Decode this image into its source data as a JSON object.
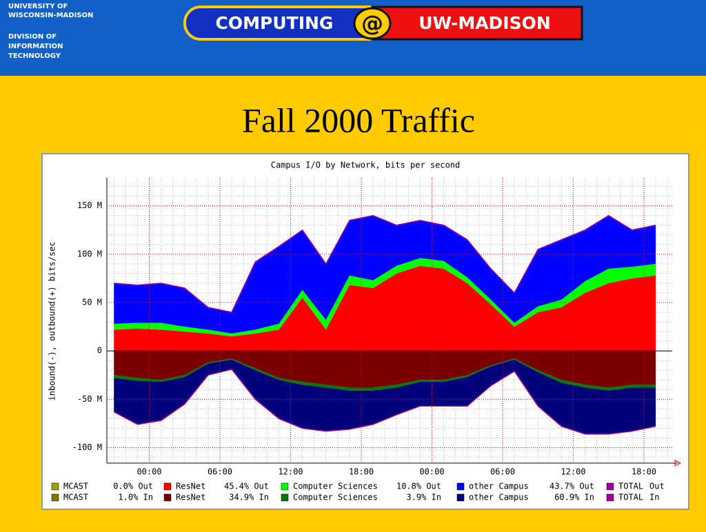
{
  "header": {
    "org": [
      "UNIVERSITY OF",
      "WISCONSIN-MADISON",
      "DIVISION OF",
      "INFORMATION",
      "TECHNOLOGY"
    ],
    "logo_left": "COMPUTING",
    "logo_at": "@",
    "logo_right": "UW-MADISON"
  },
  "slide": {
    "title": "Fall 2000 Traffic"
  },
  "chart_data": {
    "type": "stacked-area",
    "title": "Campus I/O by Network, bits per second",
    "ylabel": "inbound(-), outbound(+) bits/sec",
    "x": [
      -3,
      -1,
      1,
      3,
      5,
      7,
      9,
      11,
      13,
      15,
      17,
      19,
      21,
      23,
      25,
      27,
      29,
      31,
      33,
      35,
      37,
      39,
      41,
      43
    ],
    "xlim": [
      -3.6,
      44.4
    ],
    "xticks": [
      {
        "value": 0,
        "label": "00:00"
      },
      {
        "value": 6,
        "label": "06:00"
      },
      {
        "value": 12,
        "label": "12:00"
      },
      {
        "value": 18,
        "label": "18:00"
      },
      {
        "value": 24,
        "label": "00:00"
      },
      {
        "value": 30,
        "label": "06:00"
      },
      {
        "value": 36,
        "label": "12:00"
      },
      {
        "value": 42,
        "label": "18:00"
      }
    ],
    "minor_xticks": [
      -3,
      -2,
      -1,
      0,
      1,
      2,
      3,
      4,
      5,
      6,
      7,
      8,
      9,
      10,
      11,
      12,
      13,
      14,
      15,
      16,
      17,
      18,
      19,
      20,
      21,
      22,
      23,
      24,
      25,
      26,
      27,
      28,
      29,
      30,
      31,
      32,
      33,
      34,
      35,
      36,
      37,
      38,
      39,
      40,
      41,
      42,
      43,
      44
    ],
    "ylim": [
      -116,
      179
    ],
    "yticks": [
      {
        "value": -100,
        "label": "-100 M"
      },
      {
        "value": -50,
        "label": "-50 M"
      },
      0,
      {
        "value": 50,
        "label": "50 M"
      },
      {
        "value": 100,
        "label": "100 M"
      },
      {
        "value": 150,
        "label": "150 M"
      }
    ],
    "minor_yticks": [
      -110,
      -100,
      -90,
      -80,
      -70,
      -60,
      -50,
      -40,
      -30,
      -20,
      -10,
      0,
      10,
      20,
      30,
      40,
      50,
      60,
      70,
      80,
      90,
      100,
      110,
      120,
      130,
      140,
      150,
      160,
      170
    ],
    "grid": true,
    "series": [
      {
        "name": "MCAST",
        "stat": "0.0% Out",
        "color": "#a0a000",
        "style": "area",
        "values": [
          0,
          0,
          0,
          0,
          0,
          0,
          0,
          0,
          0,
          0,
          0,
          0,
          0,
          0,
          0,
          0,
          0,
          0,
          0,
          0,
          0,
          0,
          0,
          0
        ]
      },
      {
        "name": "MCAST",
        "stat": "1.0% In",
        "color": "#7a7a00",
        "style": "area",
        "values": [
          0,
          0,
          0,
          0,
          0,
          0,
          0,
          0,
          0,
          0,
          0,
          0,
          0,
          0,
          0,
          0,
          0,
          0,
          0,
          0,
          0,
          0,
          0,
          0
        ]
      },
      {
        "name": "ResNet",
        "stat": "45.4% Out",
        "color": "#ff0000",
        "style": "area",
        "values": [
          22,
          23,
          22,
          20,
          18,
          15,
          18,
          22,
          55,
          22,
          68,
          65,
          80,
          88,
          85,
          70,
          48,
          25,
          40,
          45,
          60,
          70,
          75,
          78
        ]
      },
      {
        "name": "ResNet",
        "stat": "34.9% In",
        "color": "#7a0000",
        "style": "area",
        "values": [
          -25,
          -28,
          -30,
          -25,
          -12,
          -8,
          -18,
          -28,
          -32,
          -35,
          -38,
          -38,
          -35,
          -30,
          -30,
          -25,
          -15,
          -8,
          -20,
          -30,
          -35,
          -38,
          -35,
          -35
        ]
      },
      {
        "name": "Computer Sciences",
        "stat": "10.8% Out",
        "color": "#00ff00",
        "style": "area",
        "values": [
          6,
          6,
          7,
          5,
          4,
          3,
          4,
          6,
          8,
          10,
          10,
          8,
          8,
          8,
          8,
          6,
          5,
          4,
          6,
          8,
          12,
          15,
          12,
          12
        ]
      },
      {
        "name": "Computer Sciences",
        "stat": "3.9% In",
        "color": "#007a00",
        "style": "area",
        "values": [
          -3,
          -3,
          -2,
          -2,
          -1,
          -1,
          -2,
          -2,
          -3,
          -3,
          -3,
          -3,
          -3,
          -2,
          -2,
          -2,
          -1,
          -1,
          -2,
          -3,
          -3,
          -3,
          -3,
          -3
        ]
      },
      {
        "name": "other Campus",
        "stat": "43.7% Out",
        "color": "#0000ff",
        "style": "area",
        "values": [
          42,
          39,
          41,
          40,
          23,
          22,
          70,
          80,
          62,
          58,
          57,
          67,
          42,
          39,
          37,
          39,
          32,
          31,
          59,
          62,
          53,
          55,
          38,
          40
        ]
      },
      {
        "name": "other Campus",
        "stat": "60.9% In",
        "color": "#00007a",
        "style": "area",
        "values": [
          -35,
          -45,
          -40,
          -28,
          -12,
          -10,
          -30,
          -40,
          -45,
          -45,
          -40,
          -35,
          -28,
          -25,
          -25,
          -30,
          -20,
          -12,
          -35,
          -45,
          -48,
          -45,
          -45,
          -40
        ]
      },
      {
        "name": "TOTAL",
        "stat": "Out",
        "color": "#a000a0",
        "style": "line",
        "values": [
          70,
          68,
          70,
          65,
          45,
          40,
          92,
          108,
          125,
          90,
          135,
          140,
          130,
          135,
          130,
          115,
          85,
          60,
          105,
          115,
          125,
          140,
          125,
          130
        ]
      },
      {
        "name": "TOTAL",
        "stat": "In",
        "color": "#a000a0",
        "style": "line",
        "values": [
          -63,
          -76,
          -72,
          -55,
          -25,
          -19,
          -50,
          -70,
          -80,
          -83,
          -81,
          -76,
          -66,
          -57,
          -57,
          -57,
          -36,
          -21,
          -57,
          -78,
          -86,
          -86,
          -83,
          -78
        ]
      }
    ]
  }
}
